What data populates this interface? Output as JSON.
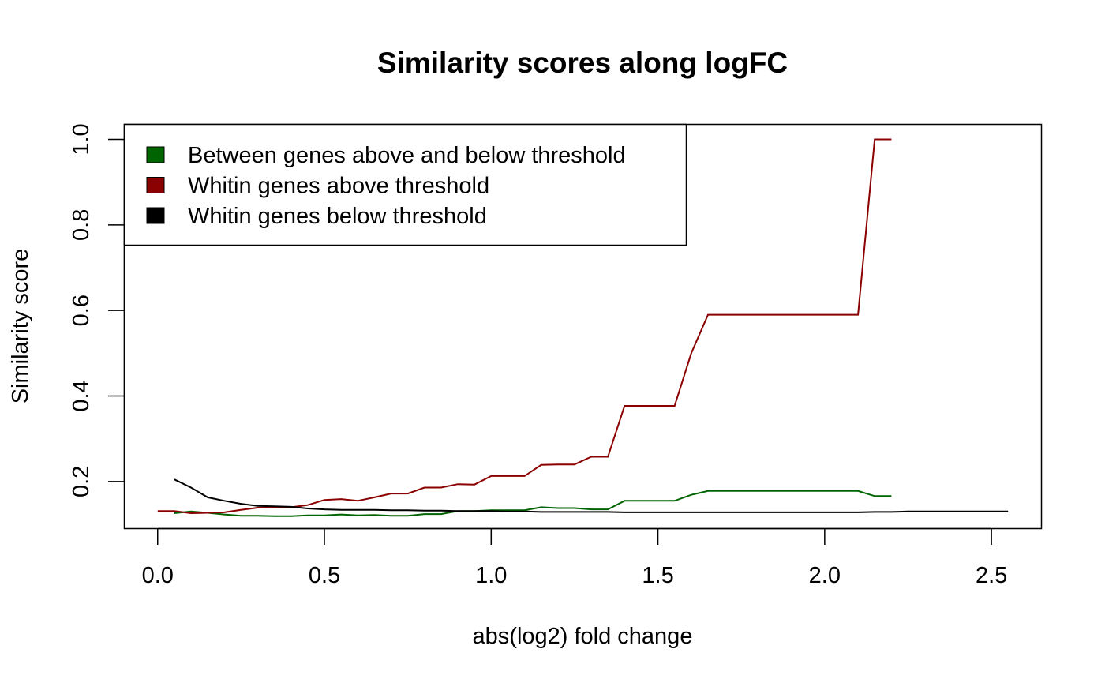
{
  "chart_data": {
    "type": "line",
    "title": "Similarity scores along logFC",
    "xlabel": "abs(log2) fold change",
    "ylabel": "Similarity score",
    "xlim": [
      -0.1,
      2.65
    ],
    "ylim": [
      0.09,
      1.035
    ],
    "xticks": [
      0.0,
      0.5,
      1.0,
      1.5,
      2.0,
      2.5
    ],
    "xtick_labels": [
      "0.0",
      "0.5",
      "1.0",
      "1.5",
      "2.0",
      "2.5"
    ],
    "yticks": [
      0.2,
      0.4,
      0.6,
      0.8,
      1.0
    ],
    "ytick_labels": [
      "0.2",
      "0.4",
      "0.6",
      "0.8",
      "1.0"
    ],
    "grid": false,
    "legend_position": "top-left",
    "series": [
      {
        "name": "Between genes above and below threshold",
        "color": "#006400",
        "x": [
          0.05,
          0.1,
          0.15,
          0.2,
          0.25,
          0.3,
          0.35,
          0.4,
          0.45,
          0.5,
          0.55,
          0.6,
          0.65,
          0.7,
          0.75,
          0.8,
          0.85,
          0.9,
          0.95,
          1.0,
          1.05,
          1.1,
          1.15,
          1.2,
          1.25,
          1.3,
          1.35,
          1.4,
          1.45,
          1.5,
          1.55,
          1.6,
          1.65,
          1.7,
          1.75,
          1.8,
          1.85,
          1.9,
          1.95,
          2.0,
          2.05,
          2.1,
          2.15,
          2.2
        ],
        "y": [
          0.126,
          0.13,
          0.127,
          0.123,
          0.12,
          0.12,
          0.119,
          0.119,
          0.121,
          0.121,
          0.123,
          0.121,
          0.122,
          0.12,
          0.12,
          0.124,
          0.124,
          0.131,
          0.131,
          0.133,
          0.133,
          0.133,
          0.14,
          0.138,
          0.138,
          0.135,
          0.135,
          0.155,
          0.155,
          0.155,
          0.155,
          0.169,
          0.178,
          0.178,
          0.178,
          0.178,
          0.178,
          0.178,
          0.178,
          0.178,
          0.178,
          0.178,
          0.166,
          0.166
        ]
      },
      {
        "name": "Whitin genes above threshold",
        "color": "#8B0000",
        "x": [
          0.0,
          0.05,
          0.1,
          0.15,
          0.2,
          0.25,
          0.3,
          0.35,
          0.4,
          0.45,
          0.5,
          0.55,
          0.6,
          0.65,
          0.7,
          0.75,
          0.8,
          0.85,
          0.9,
          0.95,
          1.0,
          1.05,
          1.1,
          1.15,
          1.2,
          1.25,
          1.3,
          1.35,
          1.4,
          1.45,
          1.5,
          1.55,
          1.6,
          1.65,
          1.7,
          1.75,
          1.8,
          1.85,
          1.9,
          1.95,
          2.0,
          2.05,
          2.1,
          2.15,
          2.2
        ],
        "y": [
          0.131,
          0.131,
          0.126,
          0.127,
          0.128,
          0.134,
          0.139,
          0.14,
          0.14,
          0.145,
          0.157,
          0.159,
          0.155,
          0.163,
          0.172,
          0.172,
          0.186,
          0.186,
          0.194,
          0.193,
          0.213,
          0.213,
          0.213,
          0.239,
          0.24,
          0.24,
          0.258,
          0.258,
          0.377,
          0.377,
          0.377,
          0.377,
          0.5,
          0.59,
          0.59,
          0.59,
          0.59,
          0.59,
          0.59,
          0.59,
          0.59,
          0.59,
          0.59,
          1.0,
          1.0
        ]
      },
      {
        "name": "Whitin genes below threshold",
        "color": "#000000",
        "x": [
          0.05,
          0.1,
          0.15,
          0.2,
          0.25,
          0.3,
          0.35,
          0.4,
          0.45,
          0.5,
          0.55,
          0.6,
          0.65,
          0.7,
          0.75,
          0.8,
          0.85,
          0.9,
          0.95,
          1.0,
          1.05,
          1.1,
          1.15,
          1.2,
          1.25,
          1.3,
          1.35,
          1.4,
          1.45,
          1.5,
          1.55,
          1.6,
          1.65,
          1.7,
          1.75,
          1.8,
          1.85,
          1.9,
          1.95,
          2.0,
          2.05,
          2.1,
          2.15,
          2.2,
          2.25,
          2.3,
          2.35,
          2.4,
          2.45,
          2.5,
          2.55
        ],
        "y": [
          0.205,
          0.186,
          0.163,
          0.155,
          0.148,
          0.143,
          0.142,
          0.141,
          0.137,
          0.135,
          0.134,
          0.134,
          0.134,
          0.133,
          0.133,
          0.132,
          0.132,
          0.131,
          0.131,
          0.131,
          0.13,
          0.13,
          0.129,
          0.129,
          0.129,
          0.129,
          0.129,
          0.128,
          0.128,
          0.128,
          0.128,
          0.128,
          0.128,
          0.128,
          0.128,
          0.128,
          0.128,
          0.128,
          0.128,
          0.128,
          0.128,
          0.128,
          0.129,
          0.129,
          0.13,
          0.13,
          0.13,
          0.13,
          0.13,
          0.13,
          0.13
        ]
      }
    ]
  }
}
